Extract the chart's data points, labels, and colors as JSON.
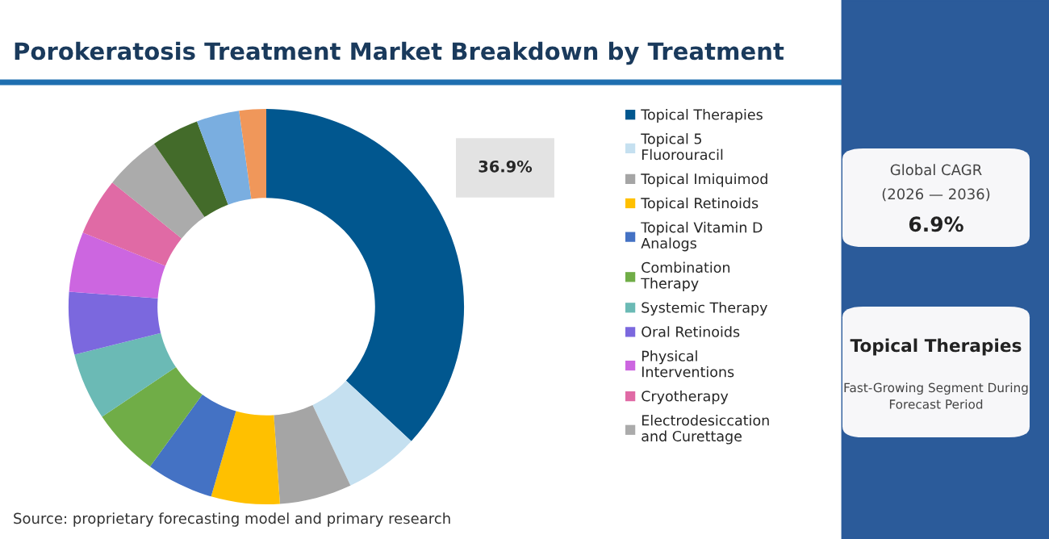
{
  "chart_data": {
    "type": "donut",
    "title": "Porokeratosis Treatment Market Breakdown by Treatment",
    "categories": [
      "Topical Therapies",
      "Topical 5 Fluorouracil",
      "Topical Imiquimod",
      "Topical Retinoids",
      "Topical Vitamin D Analogs",
      "Combination Therapy",
      "Systemic Therapy",
      "Oral Retinoids",
      "Physical Interventions",
      "Cryotherapy",
      "Electrodesiccation and Curettage",
      null,
      null,
      null
    ],
    "values": [
      36.9,
      6.1,
      5.9,
      5.6,
      5.5,
      5.6,
      5.5,
      5.1,
      4.9,
      4.7,
      4.6,
      3.9,
      3.5,
      2.2
    ],
    "colors": [
      "#01578f",
      "#c5e0f0",
      "#a5a5a5",
      "#ffc000",
      "#4472c4",
      "#70ad47",
      "#6bbab5",
      "#7b68de",
      "#cc66e0",
      "#e06aa5",
      "#ababab",
      "#436b2a",
      "#7aaee0",
      "#f0975a"
    ],
    "value_labels": [
      "36.9%",
      null,
      null,
      null,
      null,
      null,
      null,
      null,
      null,
      null,
      null,
      null,
      null,
      null
    ],
    "legend": "right",
    "annotations": [
      "Source: proprietary forecasting model and primary research",
      "Global CAGR",
      "(2026 — 2036)",
      "6.9%",
      "Topical Therapies",
      "Fast-Growing Segment During Forecast Period"
    ]
  }
}
